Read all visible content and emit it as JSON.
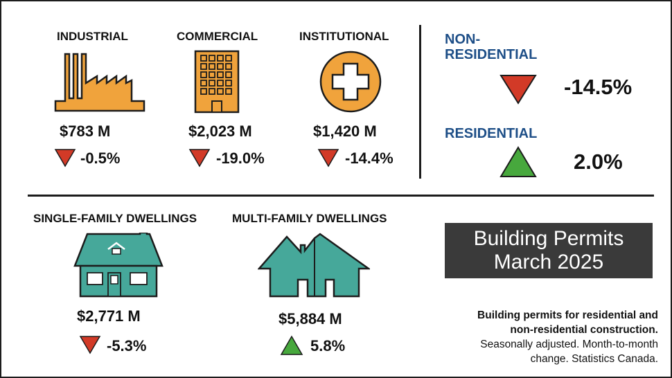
{
  "non_residential_items": [
    {
      "label": "INDUSTRIAL",
      "amount": "$783 M",
      "change": "-0.5%",
      "direction": "down",
      "icon": "factory-icon"
    },
    {
      "label": "COMMERCIAL",
      "amount": "$2,023 M",
      "change": "-19.0%",
      "direction": "down",
      "icon": "office-building-icon"
    },
    {
      "label": "INSTITUTIONAL",
      "amount": "$1,420 M",
      "change": "-14.4%",
      "direction": "down",
      "icon": "hospital-cross-icon"
    }
  ],
  "summary": {
    "non_residential": {
      "label_line1": "NON-",
      "label_line2": "RESIDENTIAL",
      "change": "-14.5%",
      "direction": "down"
    },
    "residential": {
      "label": "RESIDENTIAL",
      "change": "2.0%",
      "direction": "up"
    }
  },
  "residential_items": [
    {
      "label": "SINGLE-FAMILY DWELLINGS",
      "amount": "$2,771 M",
      "change": "-5.3%",
      "direction": "down",
      "icon": "single-house-icon"
    },
    {
      "label": "MULTI-FAMILY DWELLINGS",
      "amount": "$5,884 M",
      "change": "5.8%",
      "direction": "up",
      "icon": "multi-house-icon"
    }
  ],
  "title": {
    "line1": "Building Permits",
    "line2": "March 2025"
  },
  "note": {
    "bold_line1": "Building permits for residential and",
    "bold_line2": "non-residential construction.",
    "line3": "Seasonally adjusted. Month-to-month",
    "line4": "change. Statistics Canada."
  },
  "colors": {
    "orange": "#f0a33c",
    "teal": "#46a89a",
    "red": "#d23a27",
    "green": "#47a83d",
    "blue": "#1d4e87",
    "dark": "#3a3a3a"
  }
}
